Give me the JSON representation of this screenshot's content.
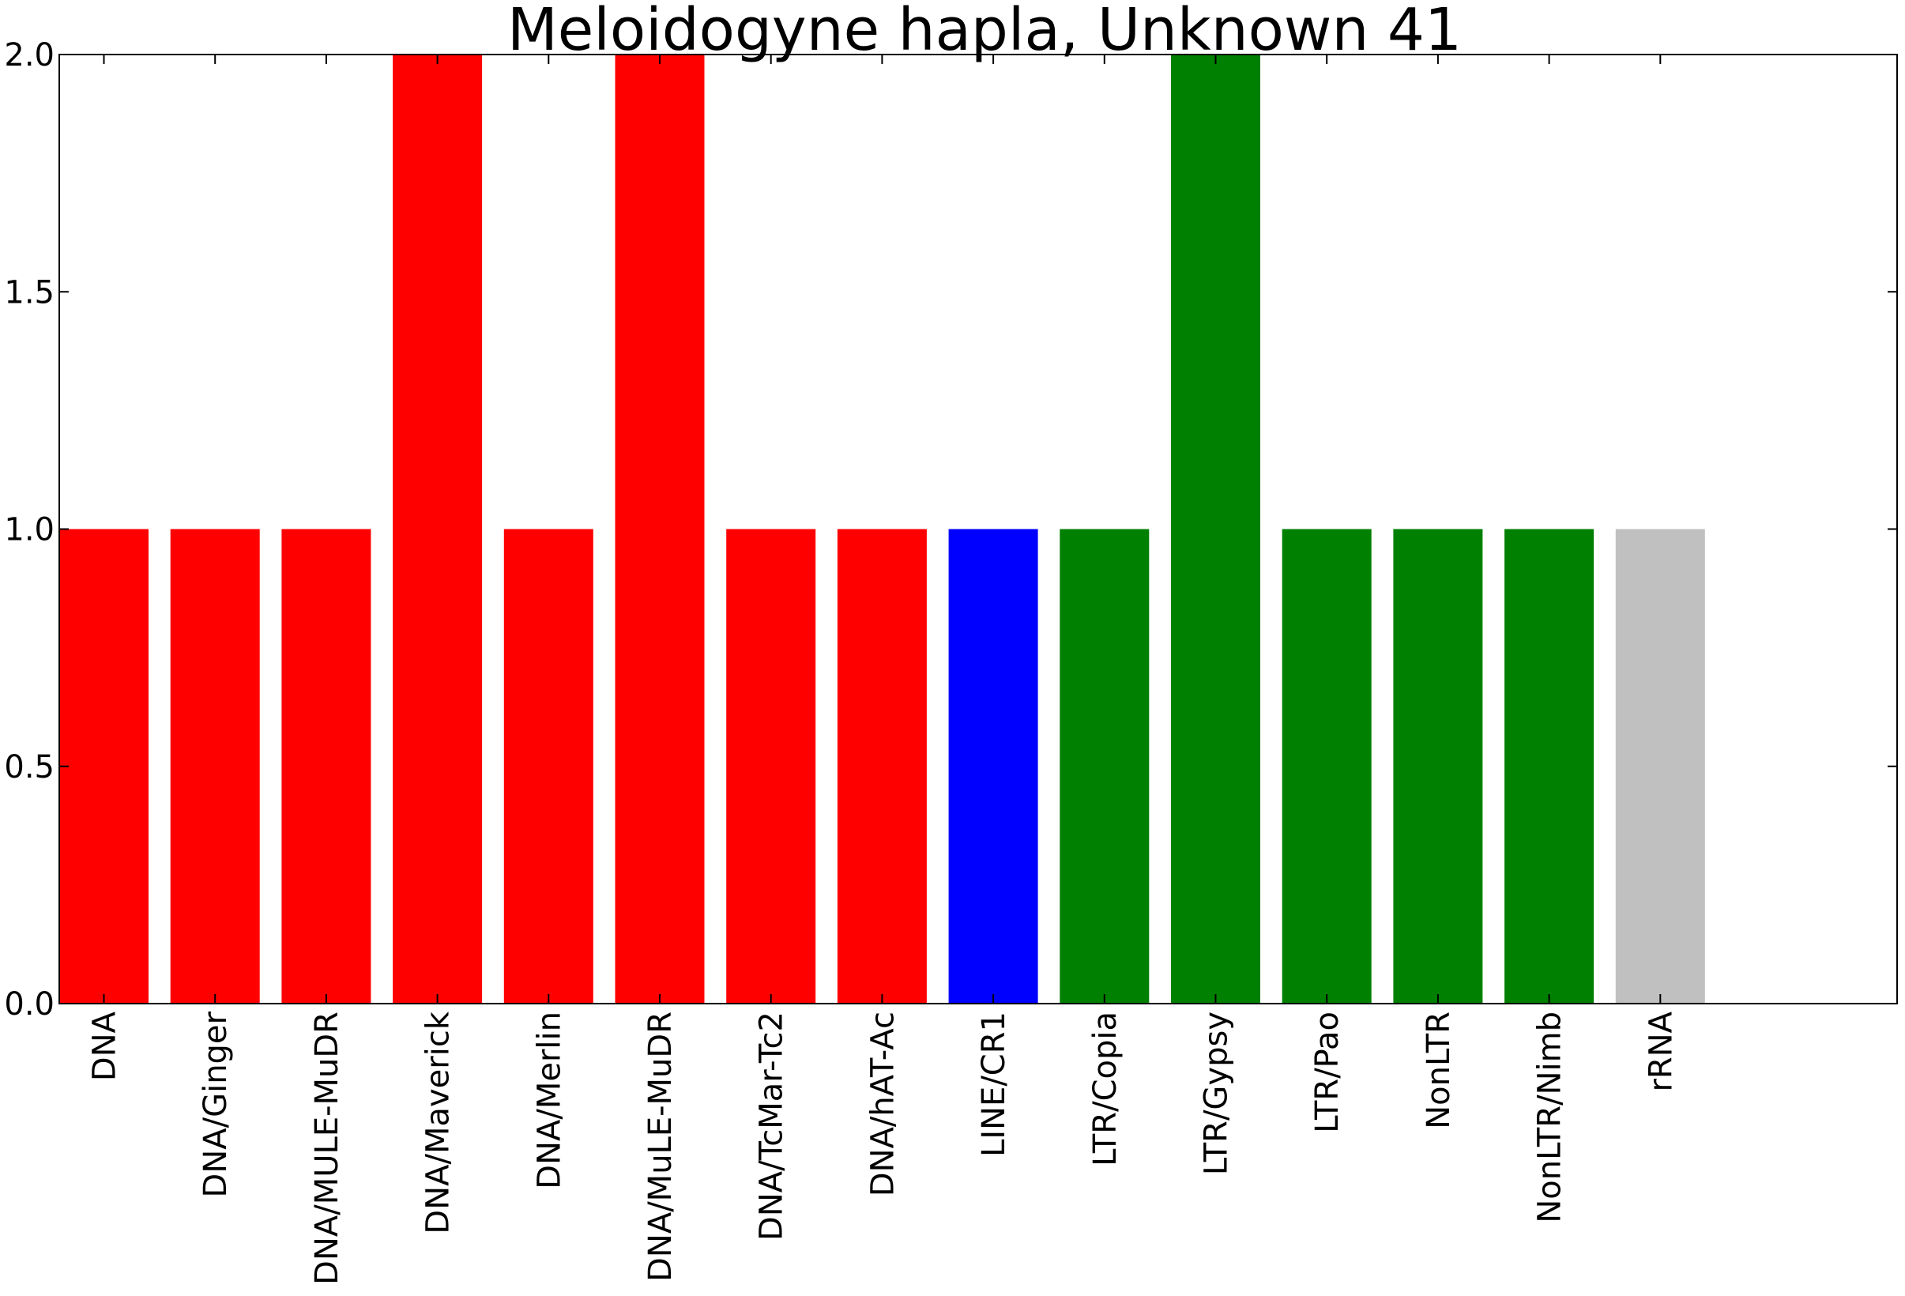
{
  "chart_data": {
    "type": "bar",
    "title": "Meloidogyne hapla, Unknown 41",
    "xlabel": "",
    "ylabel": "",
    "ylim": [
      0,
      2.0
    ],
    "yticks": [
      {
        "value": 0.0,
        "label": "0.0"
      },
      {
        "value": 0.5,
        "label": "0.5"
      },
      {
        "value": 1.0,
        "label": "1.0"
      },
      {
        "value": 1.5,
        "label": "1.5"
      },
      {
        "value": 2.0,
        "label": "2.0"
      }
    ],
    "grid": false,
    "categories": [
      "DNA",
      "DNA/Ginger",
      "DNA/MULE-MuDR",
      "DNA/Maverick",
      "DNA/Merlin",
      "DNA/MuLE-MuDR",
      "DNA/TcMar-Tc2",
      "DNA/hAT-Ac",
      "LINE/CR1",
      "LTR/Copia",
      "LTR/Gypsy",
      "LTR/Pao",
      "NonLTR",
      "NonLTR/Nimb",
      "rRNA"
    ],
    "values": [
      1,
      1,
      1,
      2,
      1,
      2,
      1,
      1,
      1,
      1,
      2,
      1,
      1,
      1,
      1
    ],
    "colors": [
      "#ff0000",
      "#ff0000",
      "#ff0000",
      "#ff0000",
      "#ff0000",
      "#ff0000",
      "#ff0000",
      "#ff0000",
      "#0000ff",
      "#008000",
      "#008000",
      "#008000",
      "#008000",
      "#008000",
      "#c0c0c0"
    ]
  }
}
